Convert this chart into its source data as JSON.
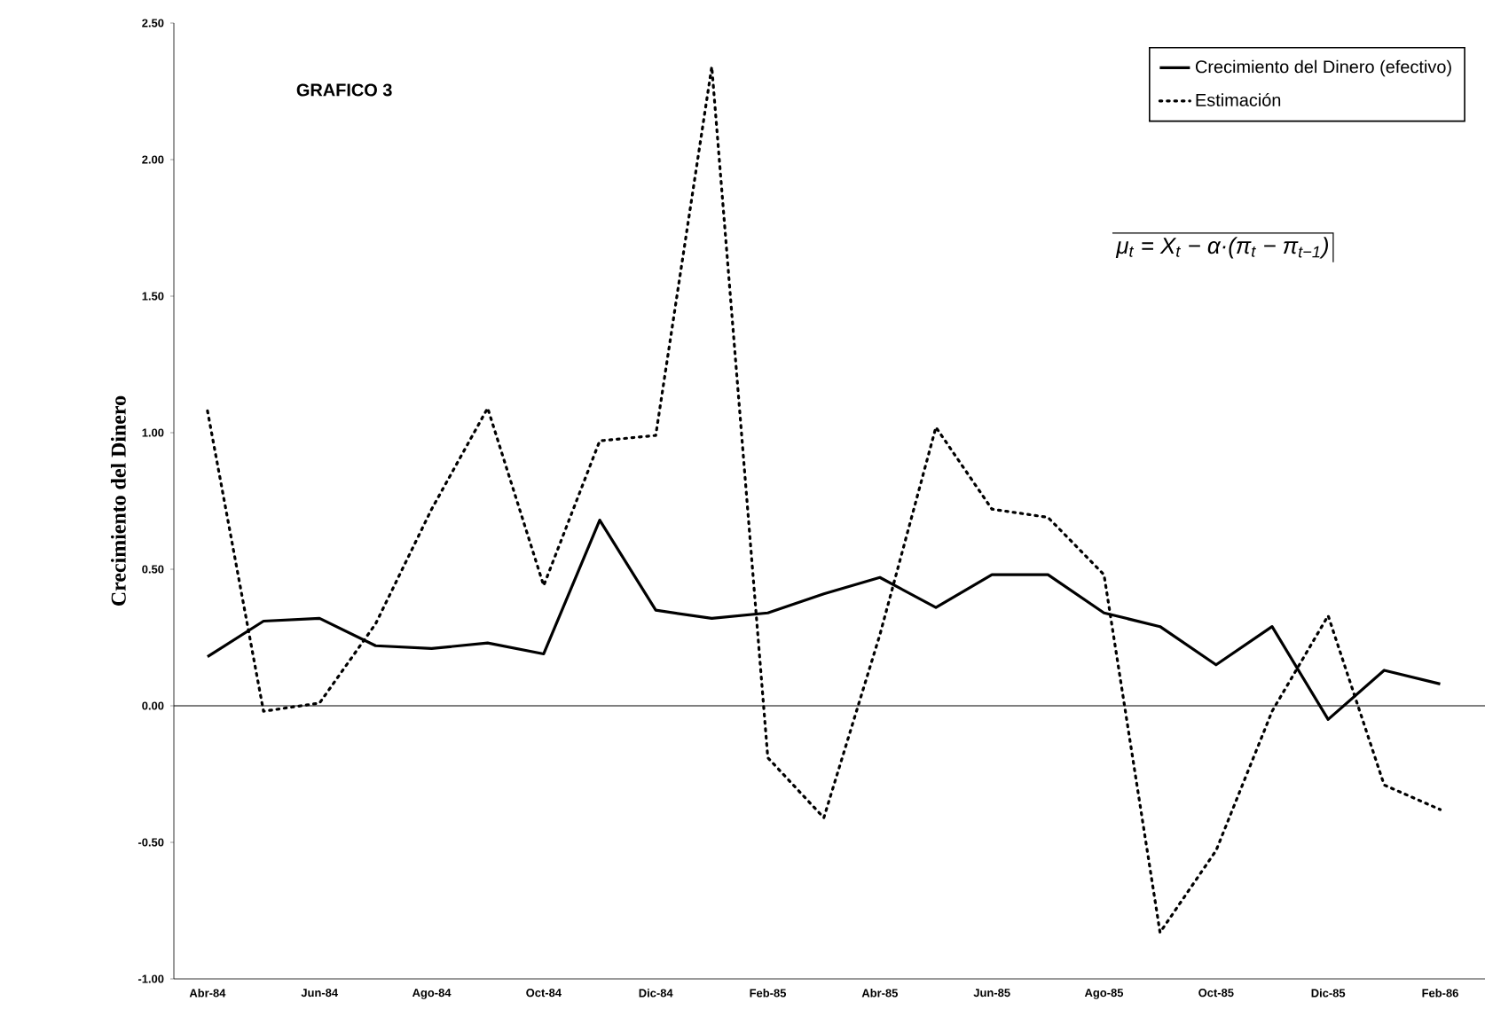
{
  "chart_data": {
    "type": "line",
    "ylabel": "Crecimiento del Dinero",
    "annotations": [
      "GRAFICO 3",
      "μ$_{t}$ = X$_{t}$ − α·(π$_{t}$ − π$_{t−1}$)"
    ],
    "categories": [
      "Abr-84",
      null,
      "Jun-84",
      null,
      "Ago-84",
      null,
      "Oct-84",
      null,
      "Dic-84",
      null,
      "Feb-85",
      null,
      "Abr-85",
      null,
      "Jun-85",
      null,
      "Ago-85",
      null,
      "Oct-85",
      null,
      "Dic-85",
      null,
      "Feb-86"
    ],
    "series": [
      {
        "name": "Crecimiento del Dinero (efectivo)",
        "color": "#000000",
        "line_style": "solid",
        "values": [
          0.18,
          0.31,
          0.32,
          0.22,
          0.21,
          0.23,
          0.19,
          0.68,
          0.35,
          0.32,
          0.34,
          0.41,
          0.47,
          0.36,
          0.48,
          0.48,
          0.34,
          0.29,
          0.15,
          0.29,
          -0.05,
          0.13,
          0.08
        ]
      },
      {
        "name": "Estimación",
        "color": "#000000",
        "line_style": "dotted",
        "values": [
          1.08,
          -0.02,
          0.01,
          0.3,
          0.72,
          1.09,
          0.44,
          0.97,
          0.99,
          2.34,
          -0.19,
          -0.41,
          0.26,
          1.02,
          0.72,
          0.69,
          0.48,
          -0.83,
          -0.53,
          -0.02,
          0.33,
          -0.29,
          -0.38
        ]
      }
    ],
    "ylim": [
      -1,
      2.5
    ],
    "yticks": [
      {
        "value": -1,
        "label": "-1.00"
      },
      {
        "value": -0.5,
        "label": "-0.50"
      },
      {
        "value": 0,
        "label": "0.00"
      },
      {
        "value": 0.5,
        "label": "0.50"
      },
      {
        "value": 1,
        "label": "1.00"
      },
      {
        "value": 1.5,
        "label": "1.50"
      },
      {
        "value": 2,
        "label": "2.00"
      },
      {
        "value": 2.5,
        "label": "2.50"
      }
    ],
    "ref_lines": [
      {
        "axis": "y",
        "value": 0
      }
    ],
    "legend": "top right",
    "marker": "none"
  }
}
